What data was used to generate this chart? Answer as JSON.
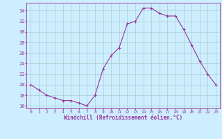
{
  "x": [
    0,
    1,
    2,
    3,
    4,
    5,
    6,
    7,
    8,
    9,
    10,
    11,
    12,
    13,
    14,
    15,
    16,
    17,
    18,
    19,
    20,
    21,
    22,
    23
  ],
  "y": [
    20.0,
    19.0,
    18.0,
    17.5,
    17.0,
    17.0,
    16.5,
    16.0,
    18.0,
    23.0,
    25.5,
    27.0,
    31.5,
    32.0,
    34.5,
    34.5,
    33.5,
    33.0,
    33.0,
    30.5,
    27.5,
    24.5,
    22.0,
    20.0
  ],
  "line_color": "#993399",
  "marker": "+",
  "marker_size": 3.5,
  "bg_color": "#cceeff",
  "grid_color": "#aacccc",
  "xlabel": "Windchill (Refroidissement éolien,°C)",
  "xlabel_color": "#993399",
  "tick_color": "#993399",
  "ylabel_ticks": [
    16,
    18,
    20,
    22,
    24,
    26,
    28,
    30,
    32,
    34
  ],
  "xlim": [
    -0.5,
    23.5
  ],
  "ylim": [
    15.5,
    35.5
  ],
  "figsize": [
    3.2,
    2.0
  ],
  "dpi": 100
}
